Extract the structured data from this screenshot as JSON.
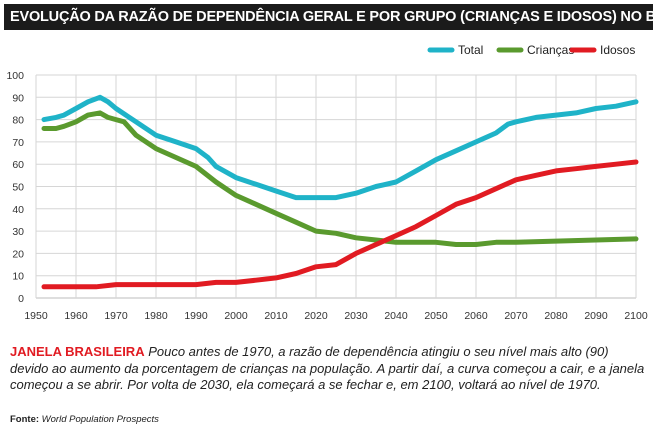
{
  "title": "EVOLUÇÃO DA RAZÃO DE DEPENDÊNCIA GERAL E POR GRUPO (CRIANÇAS E IDOSOS) NO BRASIL",
  "chart_data": {
    "type": "line",
    "xlim": [
      1950,
      2100
    ],
    "ylim": [
      0,
      100
    ],
    "x_ticks": [
      1950,
      1960,
      1970,
      1980,
      1990,
      2000,
      2010,
      2020,
      2030,
      2040,
      2050,
      2060,
      2070,
      2080,
      2090,
      2100
    ],
    "y_ticks": [
      0,
      10,
      20,
      30,
      40,
      50,
      60,
      70,
      80,
      90,
      100
    ],
    "grid": true,
    "legend_position": "top-right",
    "series": [
      {
        "name": "Total",
        "color": "#1fb3c8",
        "points": [
          [
            1952,
            80
          ],
          [
            1955,
            81
          ],
          [
            1957,
            82
          ],
          [
            1960,
            85
          ],
          [
            1963,
            88
          ],
          [
            1966,
            90
          ],
          [
            1968,
            88
          ],
          [
            1970,
            85
          ],
          [
            1975,
            79
          ],
          [
            1980,
            73
          ],
          [
            1985,
            70
          ],
          [
            1990,
            67
          ],
          [
            1993,
            63
          ],
          [
            1995,
            59
          ],
          [
            2000,
            54
          ],
          [
            2005,
            51
          ],
          [
            2010,
            48
          ],
          [
            2015,
            45
          ],
          [
            2020,
            45
          ],
          [
            2025,
            45
          ],
          [
            2030,
            47
          ],
          [
            2035,
            50
          ],
          [
            2040,
            52
          ],
          [
            2045,
            57
          ],
          [
            2050,
            62
          ],
          [
            2055,
            66
          ],
          [
            2060,
            70
          ],
          [
            2065,
            74
          ],
          [
            2068,
            78
          ],
          [
            2070,
            79
          ],
          [
            2075,
            81
          ],
          [
            2080,
            82
          ],
          [
            2085,
            83
          ],
          [
            2090,
            85
          ],
          [
            2095,
            86
          ],
          [
            2100,
            88
          ]
        ]
      },
      {
        "name": "Crianças",
        "color": "#5a9a2e",
        "points": [
          [
            1952,
            76
          ],
          [
            1955,
            76
          ],
          [
            1957,
            77
          ],
          [
            1960,
            79
          ],
          [
            1963,
            82
          ],
          [
            1966,
            83
          ],
          [
            1968,
            81
          ],
          [
            1970,
            80
          ],
          [
            1972,
            79
          ],
          [
            1975,
            73
          ],
          [
            1980,
            67
          ],
          [
            1985,
            63
          ],
          [
            1990,
            59
          ],
          [
            1995,
            52
          ],
          [
            2000,
            46
          ],
          [
            2005,
            42
          ],
          [
            2010,
            38
          ],
          [
            2015,
            34
          ],
          [
            2020,
            30
          ],
          [
            2025,
            29
          ],
          [
            2030,
            27
          ],
          [
            2035,
            26
          ],
          [
            2040,
            25
          ],
          [
            2045,
            25
          ],
          [
            2050,
            25
          ],
          [
            2055,
            24
          ],
          [
            2060,
            24
          ],
          [
            2065,
            25
          ],
          [
            2070,
            25
          ],
          [
            2080,
            25.5
          ],
          [
            2090,
            26
          ],
          [
            2100,
            26.5
          ]
        ]
      },
      {
        "name": "Idosos",
        "color": "#e11b22",
        "points": [
          [
            1952,
            5
          ],
          [
            1955,
            5
          ],
          [
            1960,
            5
          ],
          [
            1965,
            5
          ],
          [
            1970,
            6
          ],
          [
            1975,
            6
          ],
          [
            1980,
            6
          ],
          [
            1985,
            6
          ],
          [
            1990,
            6
          ],
          [
            1995,
            7
          ],
          [
            2000,
            7
          ],
          [
            2005,
            8
          ],
          [
            2010,
            9
          ],
          [
            2015,
            11
          ],
          [
            2020,
            14
          ],
          [
            2025,
            15
          ],
          [
            2030,
            20
          ],
          [
            2035,
            24
          ],
          [
            2040,
            28
          ],
          [
            2045,
            32
          ],
          [
            2050,
            37
          ],
          [
            2055,
            42
          ],
          [
            2060,
            45
          ],
          [
            2065,
            49
          ],
          [
            2070,
            53
          ],
          [
            2075,
            55
          ],
          [
            2080,
            57
          ],
          [
            2085,
            58
          ],
          [
            2090,
            59
          ],
          [
            2095,
            60
          ],
          [
            2100,
            61
          ]
        ]
      }
    ]
  },
  "caption": {
    "headline": "JANELA BRASILEIRA",
    "text": " Pouco antes de 1970, a razão de dependência atingiu o seu nível mais alto (90) devido ao aumento da porcentagem de crianças na população. A partir daí, a curva começou a cair, e a janela começou a se abrir. Por volta de 2030, ela começará a se fechar e, em 2100, voltará ao nível de 1970."
  },
  "source": {
    "label": "Fonte:",
    "value": "World Population Prospects"
  }
}
